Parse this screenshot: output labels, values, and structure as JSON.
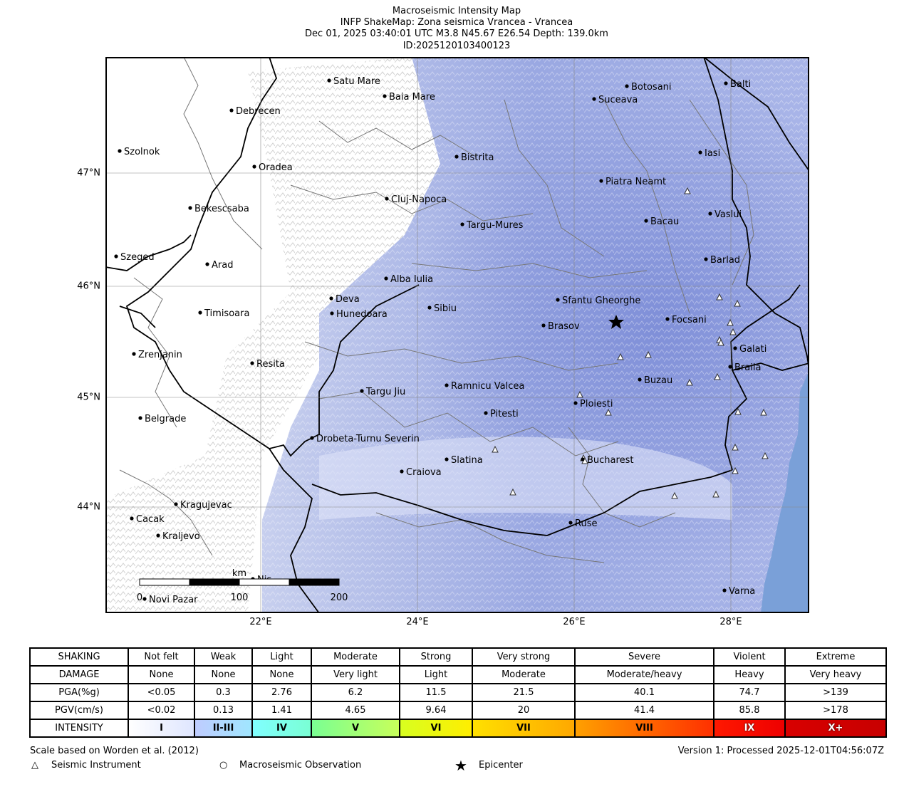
{
  "header": {
    "title": "Macroseismic Intensity Map",
    "subtitle": "INFP ShakeMap: Zona seismica Vrancea - Vrancea",
    "event_line": "Dec 01, 2025 03:40:01 UTC M3.8 N45.67 E26.54 Depth: 139.0km",
    "event_id": "ID:2025120103400123"
  },
  "map": {
    "lon_ticks": [
      "22°E",
      "24°E",
      "26°E",
      "28°E"
    ],
    "lat_ticks": [
      "47°N",
      "46°N",
      "45°N",
      "44°N"
    ],
    "cities": [
      {
        "name": "Satu Mare"
      },
      {
        "name": "Baia Mare"
      },
      {
        "name": "Debrecen"
      },
      {
        "name": "Botosani"
      },
      {
        "name": "Balti"
      },
      {
        "name": "Suceava"
      },
      {
        "name": "Szolnok"
      },
      {
        "name": "Oradea"
      },
      {
        "name": "Bistrita"
      },
      {
        "name": "Iasi"
      },
      {
        "name": "Piatra Neamt"
      },
      {
        "name": "Cluj-Napoca"
      },
      {
        "name": "Bekescsaba"
      },
      {
        "name": "Vaslui"
      },
      {
        "name": "Targu-Mures"
      },
      {
        "name": "Bacau"
      },
      {
        "name": "Szeged"
      },
      {
        "name": "Arad"
      },
      {
        "name": "Barlad"
      },
      {
        "name": "Alba Iulia"
      },
      {
        "name": "Deva"
      },
      {
        "name": "Sfantu Gheorghe"
      },
      {
        "name": "Timisoara"
      },
      {
        "name": "Hunedoara"
      },
      {
        "name": "Sibiu"
      },
      {
        "name": "Focsani"
      },
      {
        "name": "Brasov"
      },
      {
        "name": "Galati"
      },
      {
        "name": "Zrenjanin"
      },
      {
        "name": "Resita"
      },
      {
        "name": "Braila"
      },
      {
        "name": "Buzau"
      },
      {
        "name": "Targu Jiu"
      },
      {
        "name": "Ramnicu Valcea"
      },
      {
        "name": "Ploiesti"
      },
      {
        "name": "Pitesti"
      },
      {
        "name": "Belgrade"
      },
      {
        "name": "Drobeta-Turnu Severin"
      },
      {
        "name": "Slatina"
      },
      {
        "name": "Bucharest"
      },
      {
        "name": "Craiova"
      },
      {
        "name": "Kragujevac"
      },
      {
        "name": "Cacak"
      },
      {
        "name": "Ruse"
      },
      {
        "name": "Kraljevo"
      },
      {
        "name": "Nis"
      },
      {
        "name": "Varna"
      },
      {
        "name": "Novi Pazar"
      }
    ],
    "epicenter": {
      "lon": 26.54,
      "lat": 45.67
    },
    "scalebar": {
      "unit": "km",
      "labels": [
        "0",
        "100",
        "200"
      ]
    },
    "colors": {
      "land": "#ffffff",
      "sea": "#7aa0d8",
      "shaking": "#8c9bdc",
      "roads": "#777777",
      "borders": "#000000"
    }
  },
  "legend": {
    "rows": [
      {
        "label": "SHAKING",
        "values": [
          "Not felt",
          "Weak",
          "Light",
          "Moderate",
          "Strong",
          "Very strong",
          "Severe",
          "Violent",
          "Extreme"
        ]
      },
      {
        "label": "DAMAGE",
        "values": [
          "None",
          "None",
          "None",
          "Very light",
          "Light",
          "Moderate",
          "Moderate/heavy",
          "Heavy",
          "Very heavy"
        ]
      },
      {
        "label": "PGA(%g)",
        "values": [
          "<0.05",
          "0.3",
          "2.76",
          "6.2",
          "11.5",
          "21.5",
          "40.1",
          "74.7",
          ">139"
        ]
      },
      {
        "label": "PGV(cm/s)",
        "values": [
          "<0.02",
          "0.13",
          "1.41",
          "4.65",
          "9.64",
          "20",
          "41.4",
          "85.8",
          ">178"
        ]
      }
    ],
    "intensity_label": "INTENSITY",
    "intensity_values": [
      "I",
      "II-III",
      "IV",
      "V",
      "VI",
      "VII",
      "VIII",
      "IX",
      "X+"
    ],
    "intensity_gradients": [
      "linear-gradient(90deg,#ffffff,#dfe6ff)",
      "linear-gradient(90deg,#bfccff,#a0e6ff)",
      "linear-gradient(90deg,#80ffff,#7affd4)",
      "linear-gradient(90deg,#7aff93,#c8ff5a)",
      "linear-gradient(90deg,#d8ff20,#ffee00)",
      "linear-gradient(90deg,#ffe000,#ffa800)",
      "linear-gradient(90deg,#ffa000,#ff3000)",
      "linear-gradient(90deg,#ff1800,#ee0000)",
      "linear-gradient(90deg,#d80000,#c80000)"
    ]
  },
  "footer": {
    "scale_note": "Scale based on Worden et al. (2012)",
    "version": "Version 1: Processed 2025-12-01T04:56:07Z",
    "key_instrument": "Seismic Instrument",
    "key_observation": "Macroseismic Observation",
    "key_epicenter": "Epicenter"
  }
}
